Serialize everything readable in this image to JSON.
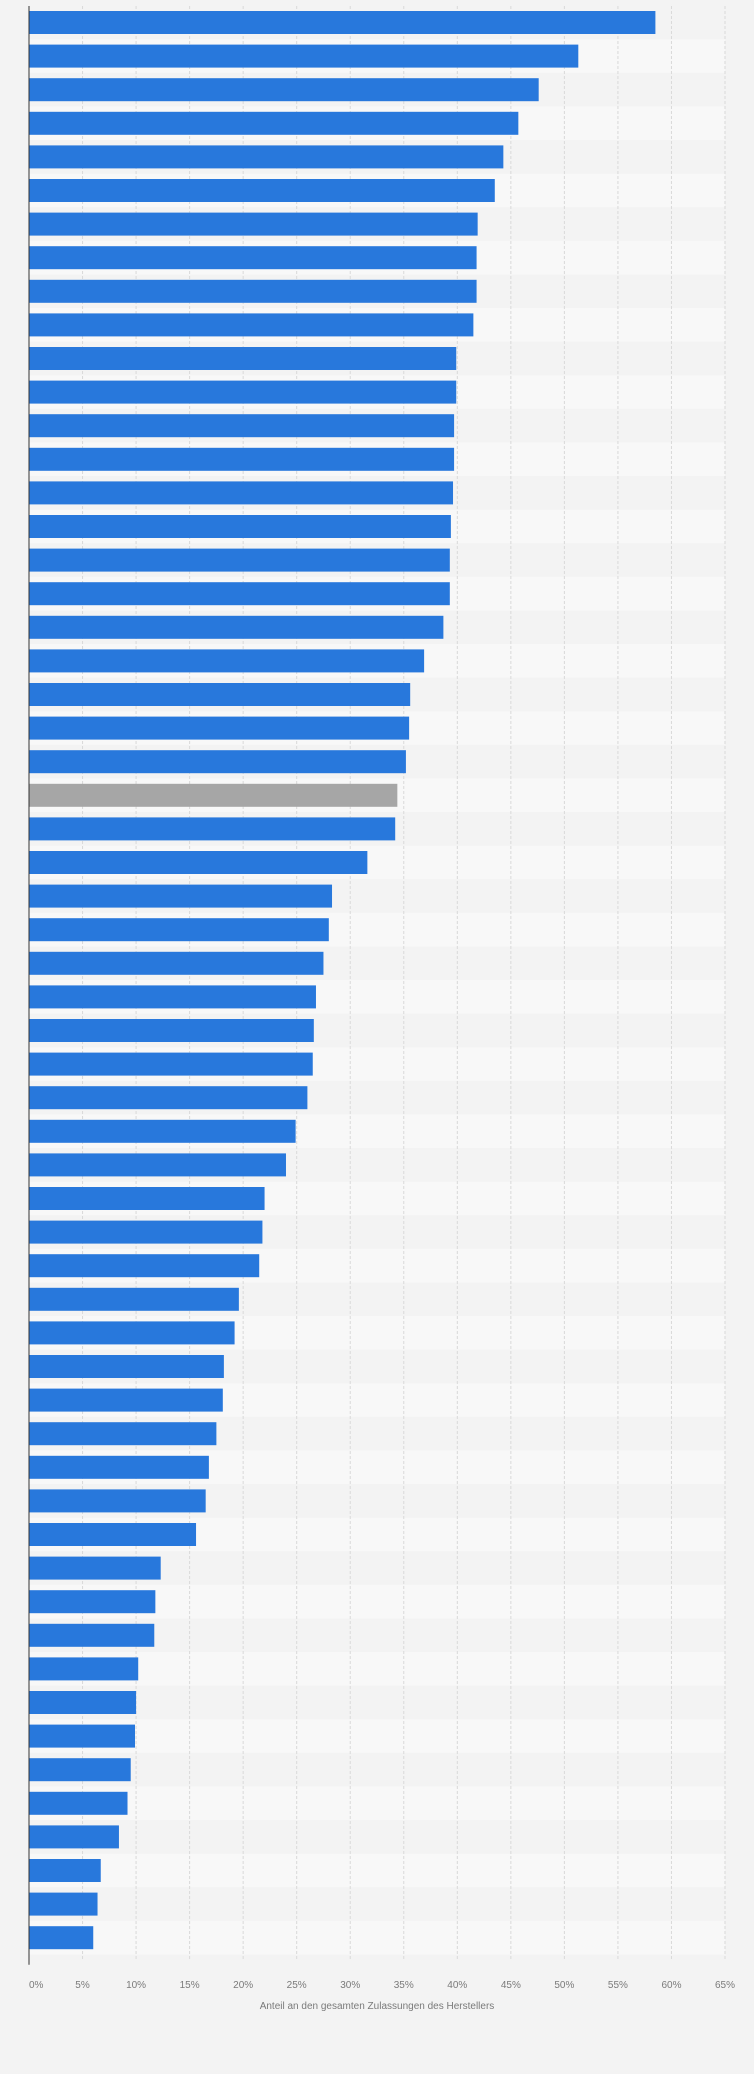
{
  "chart_data": {
    "type": "bar",
    "orientation": "horizontal",
    "xlabel": "Anteil an den gesamten Zulassungen des Herstellers",
    "xlim": [
      0,
      65
    ],
    "xticks": [
      "0%",
      "5%",
      "10%",
      "15%",
      "20%",
      "25%",
      "30%",
      "35%",
      "40%",
      "45%",
      "50%",
      "55%",
      "60%",
      "65%"
    ],
    "grid": true,
    "values": [
      58.5,
      51.3,
      47.6,
      45.7,
      44.3,
      43.5,
      41.9,
      41.8,
      41.8,
      41.5,
      39.9,
      39.9,
      39.7,
      39.7,
      39.6,
      39.4,
      39.3,
      39.3,
      38.7,
      36.9,
      35.6,
      35.5,
      35.2,
      34.4,
      34.2,
      31.6,
      28.3,
      28.0,
      27.5,
      26.8,
      26.6,
      26.5,
      26.0,
      24.9,
      24.0,
      22.0,
      21.8,
      21.5,
      19.6,
      19.2,
      18.2,
      18.1,
      17.5,
      16.8,
      16.5,
      15.6,
      12.3,
      11.8,
      11.7,
      10.2,
      10.0,
      9.9,
      9.5,
      9.2,
      8.4,
      6.7,
      6.4,
      6.0
    ],
    "highlight_index": 23,
    "colors": {
      "bar": "#2878dc",
      "highlight": "#a6a6a6",
      "band_dark": "#f3f3f3",
      "band_light": "#f8f8f8",
      "grid": "#d9d9d9",
      "axis": "#333333",
      "tick_text": "#7a7a7a"
    }
  }
}
